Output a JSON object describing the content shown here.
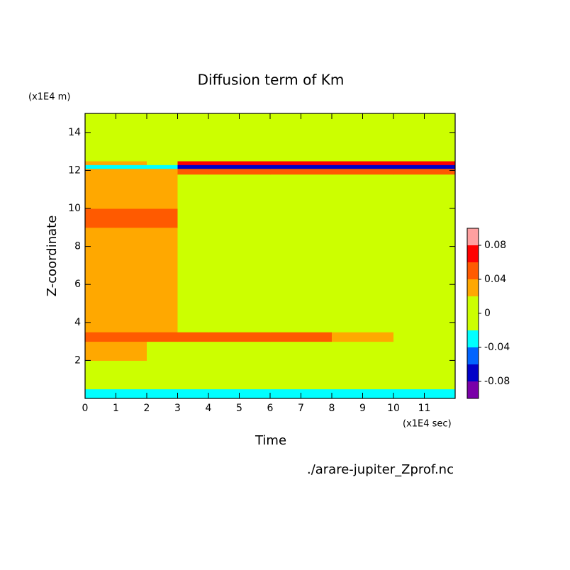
{
  "chart_data": {
    "type": "contour",
    "title": "Diffusion term of Km",
    "x_label": "Time",
    "x_unit": "(x1E4 sec)",
    "y_label": "Z-coordinate",
    "y_unit": "(x1E4 m)",
    "footer": "./arare-jupiter_Zprof.nc",
    "xlim": [
      0,
      12
    ],
    "xticks": [
      0,
      1,
      2,
      3,
      4,
      5,
      6,
      7,
      8,
      9,
      10,
      11
    ],
    "ylim": [
      0,
      15
    ],
    "yticks": [
      2,
      4,
      6,
      8,
      10,
      12,
      14
    ],
    "x_edges": [
      0,
      1,
      2,
      3,
      4,
      6,
      8,
      10,
      12
    ],
    "y_edges": [
      0,
      0.5,
      2,
      3,
      3.5,
      5,
      8,
      9,
      10,
      11.8,
      12.1,
      12.3,
      12.5,
      15
    ],
    "z": [
      [
        -0.03,
        -0.03,
        -0.03,
        -0.03,
        -0.03,
        -0.03,
        -0.03,
        -0.03
      ],
      [
        0,
        0,
        0,
        0,
        0,
        0,
        0,
        0
      ],
      [
        0.03,
        0.03,
        0,
        0,
        0,
        0,
        0,
        0
      ],
      [
        0.05,
        0.05,
        0.05,
        0.05,
        0.05,
        0.05,
        0.03,
        0
      ],
      [
        0.03,
        0.03,
        0.03,
        0,
        0,
        0,
        0,
        0
      ],
      [
        0.03,
        0.03,
        0.03,
        0,
        0,
        0,
        0,
        0
      ],
      [
        0.03,
        0.03,
        0.03,
        0,
        0,
        0,
        0,
        0
      ],
      [
        0.05,
        0.05,
        0.05,
        0,
        0,
        0,
        0,
        0
      ],
      [
        0.03,
        0.03,
        0.03,
        0,
        0,
        0,
        0,
        0
      ],
      [
        0.03,
        0.03,
        0.03,
        0.05,
        0.05,
        0.05,
        0.05,
        0.05
      ],
      [
        -0.03,
        -0.03,
        -0.03,
        -0.07,
        -0.07,
        -0.07,
        -0.07,
        -0.07
      ],
      [
        0.03,
        0.03,
        0,
        0.07,
        0.07,
        0.07,
        0.07,
        0.07
      ],
      [
        0,
        0,
        0,
        0,
        0,
        0,
        0,
        0
      ]
    ],
    "levels": [
      -0.1,
      -0.08,
      -0.06,
      -0.04,
      -0.02,
      0.02,
      0.04,
      0.06,
      0.08,
      0.1
    ],
    "colors": [
      "#7a00a8",
      "#0000c8",
      "#0064ff",
      "#00ffff",
      "#ccff00",
      "#ffa800",
      "#ff5a00",
      "#ff0000",
      "#ffa0a0"
    ],
    "colorbar_lim": [
      -0.1,
      0.1
    ],
    "colorbar_ticks": [
      0.08,
      0.04,
      0,
      -0.04,
      -0.08
    ]
  }
}
